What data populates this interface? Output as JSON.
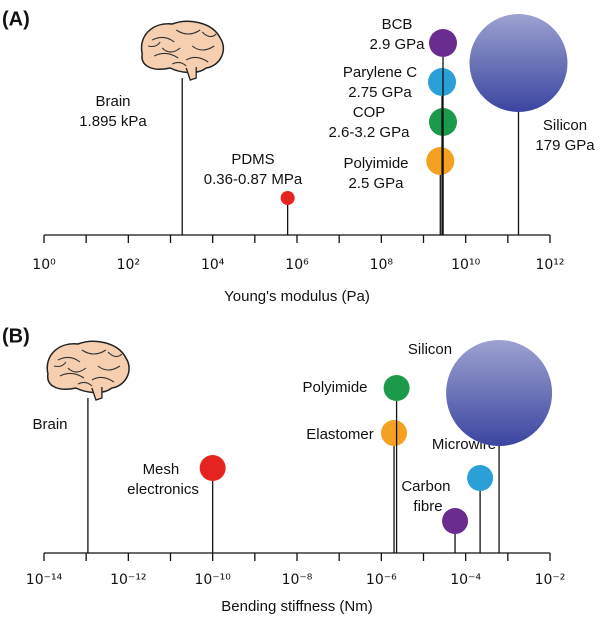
{
  "chart_data": [
    {
      "type": "lollipop",
      "panel_label": "(A)",
      "xlabel": "Young's modulus (Pa)",
      "xscale": "log",
      "xlim": [
        1,
        1000000000000.0
      ],
      "xticks": [
        {
          "value": 1,
          "label": "10⁰"
        },
        {
          "value": 100,
          "label": "10²"
        },
        {
          "value": 10000,
          "label": "10⁴"
        },
        {
          "value": 1000000,
          "label": "10⁶"
        },
        {
          "value": 100000000,
          "label": "10⁸"
        },
        {
          "value": 10000000000,
          "label": "10¹⁰"
        },
        {
          "value": 1000000000000,
          "label": "10¹²"
        }
      ],
      "minor_xticks": [
        10,
        1000,
        100000,
        10000000,
        1000000000,
        100000000000
      ],
      "categories": [
        "Brain",
        "PDMS",
        "Polyimide",
        "COP",
        "Parylene C",
        "BCB",
        "Silicon"
      ],
      "values": [
        1895,
        600000,
        2500000000,
        2900000000,
        2750000000,
        2900000000,
        179000000000
      ],
      "value_labels": [
        "1.895 kPa",
        "0.36-0.87 MPa",
        "2.5 GPa",
        "2.6-3.2 GPa",
        "2.75 GPa",
        "2.9 GPa",
        "179 GPa"
      ],
      "colors": [
        "#f5cfb0",
        "#e52421",
        "#f5a020",
        "#1a9a4a",
        "#2a9fd8",
        "#6a2c8e",
        "#3b45a0"
      ]
    },
    {
      "type": "lollipop",
      "panel_label": "(B)",
      "xlabel": "Bending stiffness (Nm)",
      "xscale": "log",
      "xlim": [
        1e-14,
        0.01
      ],
      "xticks": [
        {
          "value": 1e-14,
          "label": "10⁻¹⁴"
        },
        {
          "value": 1e-12,
          "label": "10⁻¹²"
        },
        {
          "value": 1e-10,
          "label": "10⁻¹⁰"
        },
        {
          "value": 1e-08,
          "label": "10⁻⁸"
        },
        {
          "value": 1e-06,
          "label": "10⁻⁶"
        },
        {
          "value": 0.0001,
          "label": "10⁻⁴"
        },
        {
          "value": 0.01,
          "label": "10⁻²"
        }
      ],
      "minor_xticks": [
        1e-13,
        1e-11,
        1e-09,
        1e-07,
        1e-05,
        0.001
      ],
      "categories": [
        "Brain",
        "Mesh electronics",
        "Elastomer",
        "Polyimide",
        "Carbon fibre",
        "Microwire",
        "Silicon"
      ],
      "values": [
        1.1e-13,
        1e-10,
        2e-06,
        2.3e-06,
        5.6e-05,
        0.00022,
        0.00062
      ],
      "colors": [
        "#f5cfb0",
        "#e52421",
        "#f5a020",
        "#1a9a4a",
        "#6a2c8e",
        "#2a9fd8",
        "#3b45a0"
      ]
    }
  ]
}
